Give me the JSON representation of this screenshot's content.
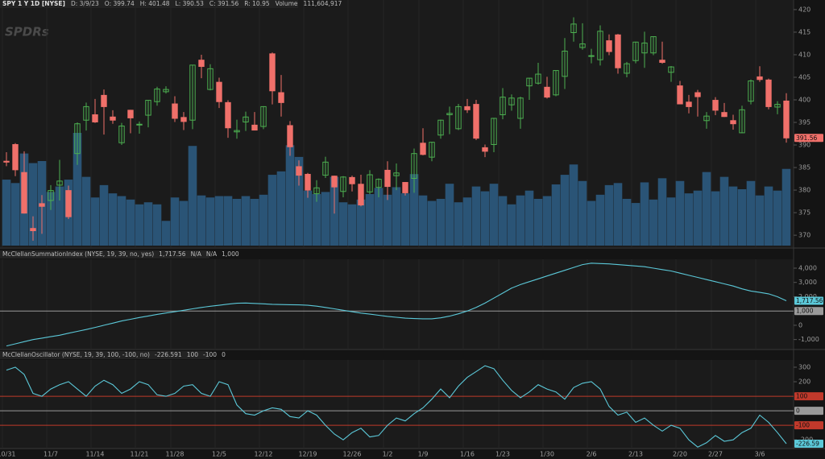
{
  "chart_data": [
    {
      "type": "candlestick",
      "title": "SPY 1 Y 1D [NYSE]",
      "watermark": "SPDRs",
      "info": [
        "D: 3/9/23",
        "O: 399.74",
        "H: 401.48",
        "L: 390.53",
        "C: 391.56",
        "R: 10.95",
        "Volume",
        "111,604,917"
      ],
      "categories": [
        "10/31",
        null,
        null,
        null,
        null,
        "11/7",
        null,
        null,
        null,
        null,
        "11/14",
        null,
        null,
        null,
        null,
        "11/21",
        null,
        null,
        null,
        "11/28",
        null,
        null,
        null,
        null,
        "12/5",
        null,
        null,
        null,
        null,
        "12/12",
        null,
        null,
        null,
        null,
        "12/19",
        null,
        null,
        null,
        null,
        "12/26",
        null,
        null,
        null,
        "1/2",
        null,
        null,
        null,
        "1/9",
        null,
        null,
        null,
        null,
        "1/16",
        null,
        null,
        null,
        "1/23",
        null,
        null,
        null,
        null,
        "1/30",
        null,
        null,
        null,
        null,
        "2/6",
        null,
        null,
        null,
        null,
        "2/13",
        null,
        null,
        null,
        null,
        "2/20",
        null,
        null,
        null,
        "2/27",
        null,
        null,
        null,
        null,
        "3/6",
        null,
        null,
        null
      ],
      "open": [
        386.4,
        390.1,
        383.9,
        371.5,
        377.0,
        377.7,
        381.1,
        379.9,
        388.1,
        395.5,
        396.7,
        401.0,
        396.2,
        390.5,
        397.7,
        394.6,
        396.6,
        399.6,
        401.8,
        399.1,
        396.1,
        395.5,
        408.8,
        402.3,
        403.9,
        399.4,
        392.9,
        395.1,
        394.4,
        394.1,
        410.2,
        401.6,
        394.3,
        385.2,
        383.5,
        379.2,
        383.3,
        383.1,
        379.7,
        382.8,
        381.3,
        379.6,
        380.6,
        384.4,
        383.2,
        381.7,
        382.6,
        390.4,
        387.3,
        392.2,
        396.7,
        393.6,
        398.5,
        399.0,
        389.4,
        390.1,
        396.7,
        398.9,
        395.9,
        403.1,
        403.7,
        402.8,
        401.1,
        405.2,
        414.9,
        411.6,
        409.8,
        408.9,
        413.1,
        414.4,
        405.9,
        408.7,
        410.4,
        410.4,
        408.8,
        406.1,
        403.1,
        399.5,
        401.6,
        395.4,
        399.9,
        397.2,
        395.4,
        392.7,
        399.7,
        405.1,
        404.4,
        398.4,
        399.74
      ],
      "high": [
        388.4,
        390.4,
        388.6,
        374.2,
        378.9,
        381.1,
        386.7,
        381.0,
        395.0,
        399.4,
        400.2,
        402.3,
        397.7,
        394.9,
        397.8,
        395.2,
        399.9,
        402.9,
        403.0,
        400.8,
        397.3,
        407.7,
        410.0,
        407.9,
        404.9,
        399.9,
        395.6,
        397.4,
        397.3,
        398.6,
        410.5,
        405.5,
        395.3,
        386.6,
        383.8,
        382.2,
        387.4,
        383.2,
        383.1,
        383.2,
        383.4,
        384.4,
        382.6,
        386.4,
        385.9,
        381.8,
        389.2,
        393.7,
        390.7,
        395.6,
        398.5,
        399.1,
        400.2,
        400.0,
        390.1,
        396.0,
        402.6,
        401.2,
        400.7,
        404.9,
        408.2,
        405.1,
        406.5,
        413.7,
        418.3,
        416.97,
        411.3,
        416.5,
        414.5,
        414.6,
        408.4,
        412.9,
        415.1,
        414.1,
        412.9,
        407.5,
        404.2,
        401.1,
        402.2,
        397.3,
        400.6,
        399.3,
        396.7,
        398.7,
        404.5,
        407.45,
        404.7,
        399.7,
        401.48
      ],
      "low": [
        385.3,
        383.1,
        374.8,
        368.8,
        370.3,
        375.6,
        377.7,
        373.6,
        385.6,
        393.2,
        394.9,
        392.3,
        394.7,
        390.0,
        392.6,
        392.5,
        393.9,
        398.7,
        401.4,
        395.1,
        393.3,
        393.5,
        404.8,
        402.1,
        398.2,
        391.6,
        391.4,
        393.1,
        393.3,
        393.5,
        399.0,
        396.3,
        387.6,
        381.0,
        378.3,
        377.4,
        382.7,
        374.8,
        378.4,
        379.7,
        376.4,
        379.1,
        378.4,
        377.8,
        380.0,
        378.8,
        379.4,
        387.7,
        386.4,
        391.4,
        392.4,
        393.3,
        397.1,
        391.1,
        387.3,
        388.4,
        395.7,
        397.6,
        393.6,
        400.0,
        403.4,
        400.3,
        400.8,
        402.4,
        412.9,
        411.1,
        408.1,
        407.6,
        409.9,
        405.8,
        405.0,
        408.1,
        407.1,
        409.9,
        408.0,
        404.0,
        399.1,
        397.0,
        396.3,
        393.6,
        396.6,
        396.2,
        393.4,
        392.6,
        399.0,
        404.0,
        397.9,
        396.8,
        390.53
      ],
      "close": [
        386.2,
        384.5,
        374.9,
        371.0,
        376.4,
        379.9,
        382.0,
        374.1,
        394.7,
        398.5,
        395.1,
        398.5,
        395.5,
        394.2,
        396.0,
        394.6,
        399.9,
        402.4,
        402.3,
        395.9,
        395.2,
        407.7,
        407.4,
        406.9,
        399.6,
        393.8,
        393.2,
        396.2,
        393.3,
        398.5,
        402.0,
        399.4,
        389.6,
        383.3,
        380.0,
        380.5,
        386.2,
        380.7,
        382.9,
        381.4,
        376.7,
        383.4,
        382.4,
        380.8,
        383.8,
        379.4,
        388.1,
        387.9,
        390.6,
        395.5,
        397.0,
        398.5,
        397.8,
        391.5,
        388.6,
        395.9,
        400.6,
        400.4,
        400.4,
        404.8,
        405.7,
        400.6,
        406.5,
        410.8,
        416.8,
        412.4,
        409.8,
        415.2,
        410.7,
        407.1,
        408.0,
        412.8,
        412.6,
        414.0,
        408.3,
        407.3,
        399.1,
        398.5,
        400.7,
        396.4,
        397.7,
        396.3,
        394.7,
        397.8,
        404.2,
        404.5,
        398.5,
        399.0,
        391.56
      ],
      "up_color": "#4caf50",
      "down_color": "#f0706a",
      "volume": {
        "name": "Volume",
        "color": "#2a5476",
        "values": [
          96000000,
          91000000,
          134000000,
          120000000,
          123000000,
          78000000,
          86000000,
          96000000,
          164000000,
          100000000,
          70000000,
          88000000,
          76000000,
          72000000,
          67000000,
          60000000,
          63000000,
          60000000,
          36000000,
          70000000,
          65000000,
          145000000,
          73000000,
          70000000,
          72000000,
          72000000,
          68000000,
          72000000,
          68000000,
          74000000,
          103000000,
          108000000,
          146000000,
          129000000,
          80000000,
          75000000,
          78000000,
          100000000,
          63000000,
          60000000,
          67000000,
          75000000,
          84000000,
          74000000,
          85000000,
          76000000,
          104000000,
          73000000,
          65000000,
          68000000,
          90000000,
          63000000,
          70000000,
          86000000,
          79000000,
          90000000,
          72000000,
          60000000,
          73000000,
          80000000,
          68000000,
          72000000,
          89000000,
          103000000,
          118000000,
          94000000,
          65000000,
          74000000,
          88000000,
          91000000,
          68000000,
          62000000,
          92000000,
          67000000,
          98000000,
          70000000,
          94000000,
          76000000,
          80000000,
          107000000,
          79000000,
          100000000,
          86000000,
          82000000,
          94000000,
          73000000,
          86000000,
          80000000,
          111604917
        ]
      },
      "ylim": [
        367.7,
        420.7
      ],
      "yticks": [
        370,
        375,
        380,
        385,
        390,
        395,
        400,
        405,
        410,
        415,
        420
      ]
    },
    {
      "type": "line",
      "series": [
        {
          "name": "McClellanSummationIndex (NYSE, 19, 39, no, yes)",
          "color": "#5bc8d8",
          "values": [
            -1450,
            -1300,
            -1150,
            -1000,
            -900,
            -800,
            -700,
            -560,
            -430,
            -300,
            -150,
            0,
            150,
            300,
            420,
            540,
            650,
            760,
            860,
            950,
            1050,
            1150,
            1250,
            1330,
            1400,
            1480,
            1540,
            1560,
            1530,
            1500,
            1470,
            1450,
            1440,
            1430,
            1400,
            1340,
            1250,
            1150,
            1050,
            950,
            850,
            780,
            700,
            620,
            560,
            500,
            470,
            450,
            450,
            520,
            640,
            800,
            1000,
            1250,
            1550,
            1900,
            2250,
            2600,
            2850,
            3050,
            3250,
            3450,
            3650,
            3850,
            4050,
            4250,
            4350,
            4320,
            4300,
            4250,
            4200,
            4150,
            4100,
            4000,
            3900,
            3800,
            3650,
            3500,
            3350,
            3200,
            3050,
            2900,
            2750,
            2550,
            2400,
            2300,
            2200,
            2000,
            1717.56
          ]
        }
      ],
      "info": [
        {
          "text": "1,717.56",
          "color": "#5bc8d8"
        },
        {
          "text": "N/A",
          "color": "#e06666"
        },
        {
          "text": "N/A",
          "color": "#e06666"
        },
        {
          "text": "1,000",
          "color": "#777777"
        }
      ],
      "levels": [
        {
          "value": 1000,
          "label": "1,000",
          "color": "#9a9a9a"
        }
      ],
      "ylim": [
        -1640,
        4620
      ],
      "yticks": [
        {
          "value": -1000,
          "label": "-1,000"
        },
        0,
        {
          "value": 2000,
          "label": "2,000"
        },
        {
          "value": 3000,
          "label": "3,000"
        },
        {
          "value": 4000,
          "label": "4,000"
        }
      ]
    },
    {
      "type": "line",
      "series": [
        {
          "name": "McClellanOscillator (NYSE, 19, 39, 100, -100, no)",
          "color": "#5bc8d8",
          "values": [
            280,
            300,
            250,
            120,
            100,
            150,
            180,
            200,
            150,
            100,
            170,
            210,
            180,
            120,
            150,
            200,
            180,
            110,
            100,
            120,
            170,
            180,
            120,
            100,
            200,
            180,
            40,
            -20,
            -30,
            0,
            20,
            10,
            -40,
            -50,
            0,
            -30,
            -100,
            -160,
            -200,
            -150,
            -120,
            -180,
            -170,
            -100,
            -50,
            -70,
            -20,
            20,
            80,
            150,
            90,
            170,
            230,
            270,
            310,
            290,
            210,
            140,
            90,
            130,
            180,
            150,
            130,
            80,
            160,
            190,
            200,
            150,
            30,
            -30,
            -10,
            -80,
            -50,
            -100,
            -140,
            -100,
            -120,
            -200,
            -250,
            -220,
            -170,
            -210,
            -200,
            -150,
            -120,
            -30,
            -80,
            -150,
            -226.591
          ]
        }
      ],
      "info": [
        {
          "text": "-226.591",
          "color": "#5bc8d8"
        },
        {
          "text": "100",
          "color": "#e06666"
        },
        {
          "text": "-100",
          "color": "#e06666"
        },
        {
          "text": "0",
          "color": "#9a9a9a"
        }
      ],
      "axis_label": "-226.59",
      "levels": [
        {
          "value": 100,
          "color": "#c0392b"
        },
        {
          "value": 0,
          "color": "#9a9a9a"
        },
        {
          "value": -100,
          "color": "#c0392b"
        }
      ],
      "ylim": [
        -260,
        350
      ],
      "yticks": [
        300,
        200,
        -200
      ]
    }
  ]
}
